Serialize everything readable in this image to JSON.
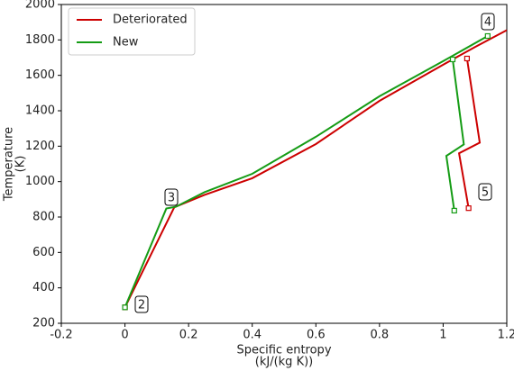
{
  "chart_data": {
    "type": "line",
    "xlabel": [
      "Specific entropy",
      "(kJ/(kg K))"
    ],
    "ylabel": [
      "Temperature",
      "(K)"
    ],
    "xlim": [
      -0.2,
      1.2
    ],
    "xticks": [
      -0.2,
      0,
      0.2,
      0.4,
      0.6,
      0.8,
      1,
      1.2
    ],
    "ylim": [
      200,
      2000
    ],
    "yticks": [
      200,
      400,
      600,
      800,
      1000,
      1200,
      1400,
      1600,
      1800,
      2000
    ],
    "legend": "upper left",
    "series": [
      {
        "name": "Deteriorated",
        "color": "#cc0000",
        "x": [
          0,
          0.155,
          0.25,
          0.4,
          0.6,
          0.8,
          1.0,
          1.1,
          1.2,
          null,
          1.075,
          1.115,
          1.05,
          1.08
        ],
        "values": [
          290,
          855,
          925,
          1019,
          1212,
          1456,
          1660,
          1760,
          1855,
          null,
          1695,
          1220,
          1160,
          850
        ]
      },
      {
        "name": "New",
        "color": "#159c15",
        "x": [
          0,
          0.13,
          0.16,
          0.25,
          0.4,
          0.6,
          0.8,
          1.0,
          1.14,
          null,
          1.03,
          1.065,
          1.01,
          1.035
        ],
        "values": [
          290,
          848,
          858,
          940,
          1044,
          1253,
          1482,
          1680,
          1822,
          null,
          1690,
          1210,
          1145,
          836
        ]
      }
    ],
    "annotations": [
      "2",
      "3",
      "4",
      "5"
    ]
  }
}
